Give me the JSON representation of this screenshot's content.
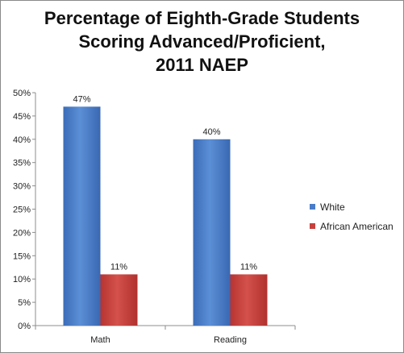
{
  "chart_data": {
    "type": "bar",
    "title_lines": [
      "Percentage of Eighth-Grade Students",
      "Scoring Advanced/Proficient,",
      "2011 NAEP"
    ],
    "categories": [
      "Math",
      "Reading"
    ],
    "series": [
      {
        "name": "White",
        "values": [
          47,
          40
        ],
        "labels": [
          "47%",
          "40%"
        ],
        "color": "#4a7dc9"
      },
      {
        "name": "African American",
        "values": [
          11,
          11
        ],
        "labels": [
          "11%",
          "11%"
        ],
        "color": "#c8403c"
      }
    ],
    "ylim": [
      0,
      50
    ],
    "yticks": [
      0,
      5,
      10,
      15,
      20,
      25,
      30,
      35,
      40,
      45,
      50
    ],
    "ytick_labels": [
      "0%",
      "5%",
      "10%",
      "15%",
      "20%",
      "25%",
      "30%",
      "35%",
      "40%",
      "45%",
      "50%"
    ],
    "grid": false,
    "legend_position": "right"
  }
}
